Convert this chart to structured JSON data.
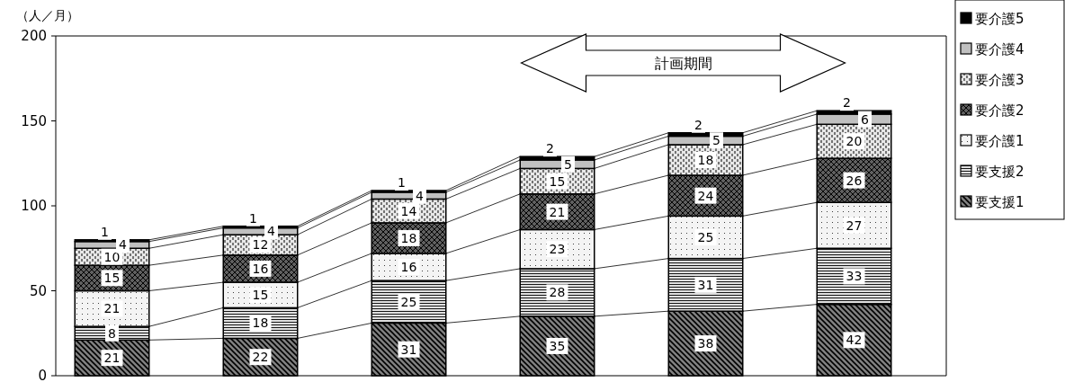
{
  "chart_data": {
    "type": "bar",
    "stacked": true,
    "ylabel": "（人／月）",
    "categories": [
      null,
      null,
      null,
      null,
      null,
      null
    ],
    "series": [
      {
        "name": "要支援1",
        "color": "#808080",
        "values": [
          21,
          22,
          31,
          35,
          38,
          42
        ]
      },
      {
        "name": "要支援2",
        "color": "#e0e0e0",
        "values": [
          8,
          18,
          25,
          28,
          31,
          33
        ]
      },
      {
        "name": "要介護1",
        "color": "#f4f4f4",
        "values": [
          21,
          15,
          16,
          23,
          25,
          27
        ]
      },
      {
        "name": "要介護2",
        "color": "#606060",
        "values": [
          15,
          16,
          18,
          21,
          24,
          26
        ]
      },
      {
        "name": "要介護3",
        "color": "#e8e8e8",
        "values": [
          10,
          12,
          14,
          15,
          18,
          20
        ]
      },
      {
        "name": "要介護4",
        "color": "#c0c0c0",
        "values": [
          4,
          4,
          4,
          5,
          5,
          6
        ]
      },
      {
        "name": "要介護5",
        "color": "#000000",
        "values": [
          1,
          1,
          1,
          2,
          2,
          2
        ]
      }
    ],
    "ylim": [
      0,
      200
    ],
    "yticks": [
      0,
      50,
      100,
      150,
      200
    ],
    "data_labels": true,
    "legend": "top right",
    "annotations": [
      "計画期間"
    ]
  }
}
